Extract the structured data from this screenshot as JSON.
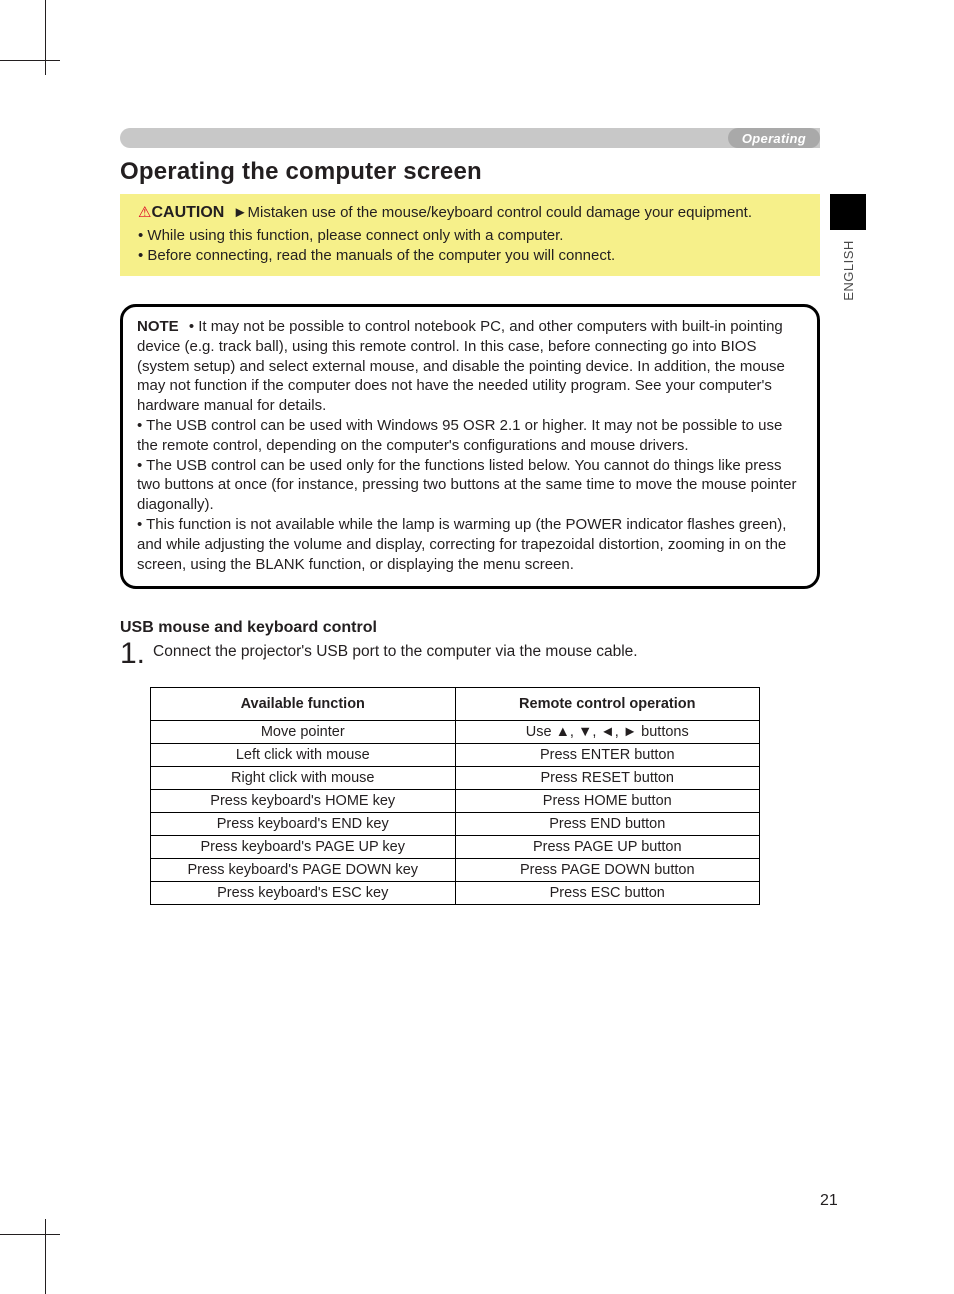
{
  "section_label": "Operating",
  "language_tab": "ENGLISH",
  "page_number": "21",
  "h1": "Operating the computer screen",
  "caution": {
    "label": "CAUTION",
    "arrow": "►",
    "lead": "Mistaken use of the mouse/keyboard control could damage your equipment.",
    "bullets": [
      "• While using this function, please connect only with a computer.",
      "• Before connecting, read the manuals of the computer you will connect."
    ]
  },
  "note": {
    "label": "NOTE",
    "paras": [
      "• It may not be possible to control notebook PC, and other computers with built-in pointing device (e.g. track ball), using this remote control. In this case, before connecting go into BIOS (system setup) and select external mouse, and disable the pointing device. In addition, the mouse may not function if the computer does not have the needed utility program. See your computer's hardware manual for details.",
      "• The USB control can be used with Windows 95 OSR 2.1 or higher. It may not be possible to use the remote control, depending on the computer's configurations and mouse drivers.",
      "• The USB control can be used only for the functions listed below. You cannot do things like press two buttons at once (for instance, pressing two buttons at the same time to move the mouse pointer diagonally).",
      "• This function is not available while the lamp is warming up (the POWER indicator flashes green), and while adjusting the volume and display, correcting for trapezoidal distortion, zooming in on the screen, using the BLANK function, or displaying the menu screen."
    ]
  },
  "usb_heading": "USB mouse and keyboard control",
  "step1_num": "1.",
  "step1_text": "Connect the projector's USB port to the computer via the mouse cable.",
  "table": {
    "headers": [
      "Available function",
      "Remote control operation"
    ],
    "rows": [
      [
        "Move pointer",
        "Use ▲, ▼, ◄, ► buttons"
      ],
      [
        "Left click with mouse",
        "Press ENTER button"
      ],
      [
        "Right click with mouse",
        "Press RESET button"
      ],
      [
        "Press keyboard's HOME key",
        "Press HOME button"
      ],
      [
        "Press keyboard's END key",
        "Press END button"
      ],
      [
        "Press keyboard's PAGE UP key",
        "Press PAGE UP button"
      ],
      [
        "Press keyboard's PAGE DOWN key",
        "Press PAGE DOWN button"
      ],
      [
        "Press keyboard's ESC key",
        "Press ESC button"
      ]
    ]
  }
}
